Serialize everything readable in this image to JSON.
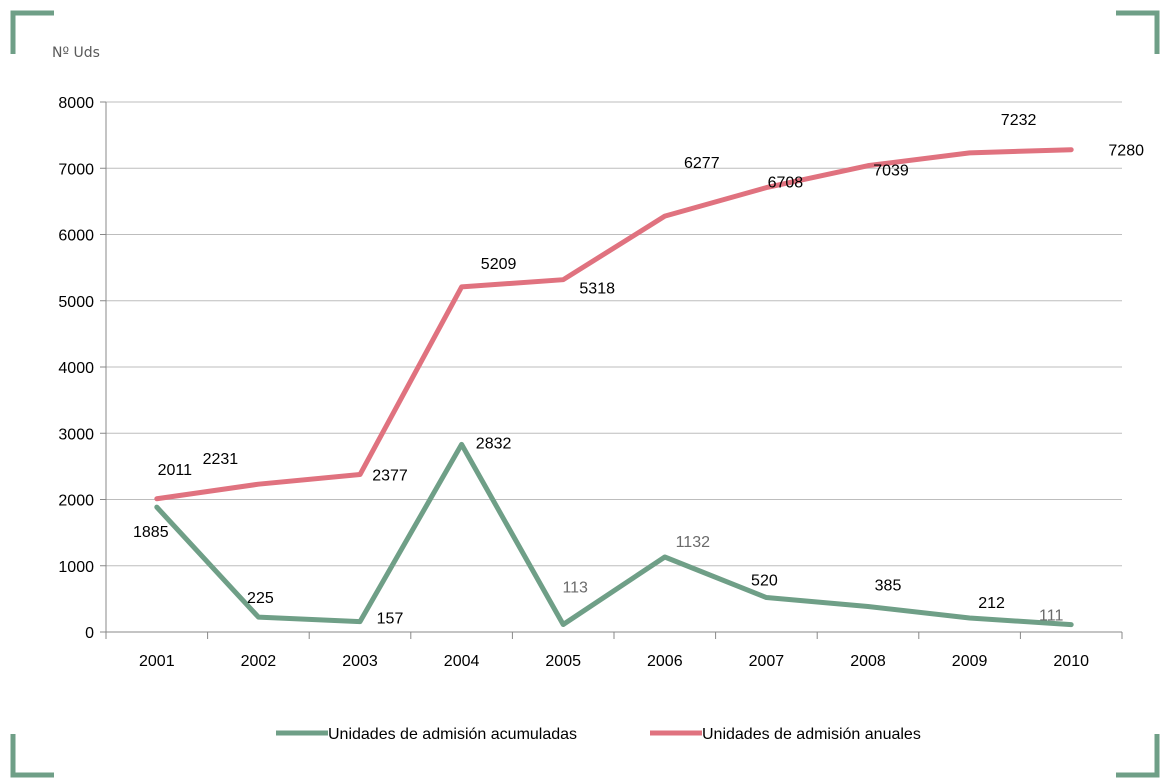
{
  "colors": {
    "frame": "#6f9f87",
    "grid": "#bdbdbd",
    "axis": "#888888"
  },
  "chart_data": {
    "type": "line",
    "title": "",
    "ylabel": "Nº Uds",
    "xlabel": "",
    "categories": [
      "2001",
      "2002",
      "2003",
      "2004",
      "2005",
      "2006",
      "2007",
      "2008",
      "2009",
      "2010"
    ],
    "ylim": [
      0,
      8000
    ],
    "yticks": [
      0,
      1000,
      2000,
      3000,
      4000,
      5000,
      6000,
      7000,
      8000
    ],
    "grid": true,
    "legend_position": "bottom",
    "series": [
      {
        "name": "Unidades de admisión acumuladas",
        "color": "#6f9f87",
        "values": [
          1885,
          225,
          157,
          2832,
          113,
          1132,
          520,
          385,
          212,
          111
        ],
        "labels": [
          "1885",
          "225",
          "157",
          "2832",
          "113",
          "1132",
          "520",
          "385",
          "212",
          "111"
        ]
      },
      {
        "name": "Unidades de admisión anuales",
        "color": "#e0727f",
        "values": [
          2011,
          2231,
          2377,
          5209,
          5318,
          6277,
          6708,
          7039,
          7232,
          7280
        ],
        "labels": [
          "2011",
          "2231",
          "2377",
          "5209",
          "5318",
          "6277",
          "6708",
          "7039",
          "7232",
          "7280"
        ]
      }
    ]
  }
}
